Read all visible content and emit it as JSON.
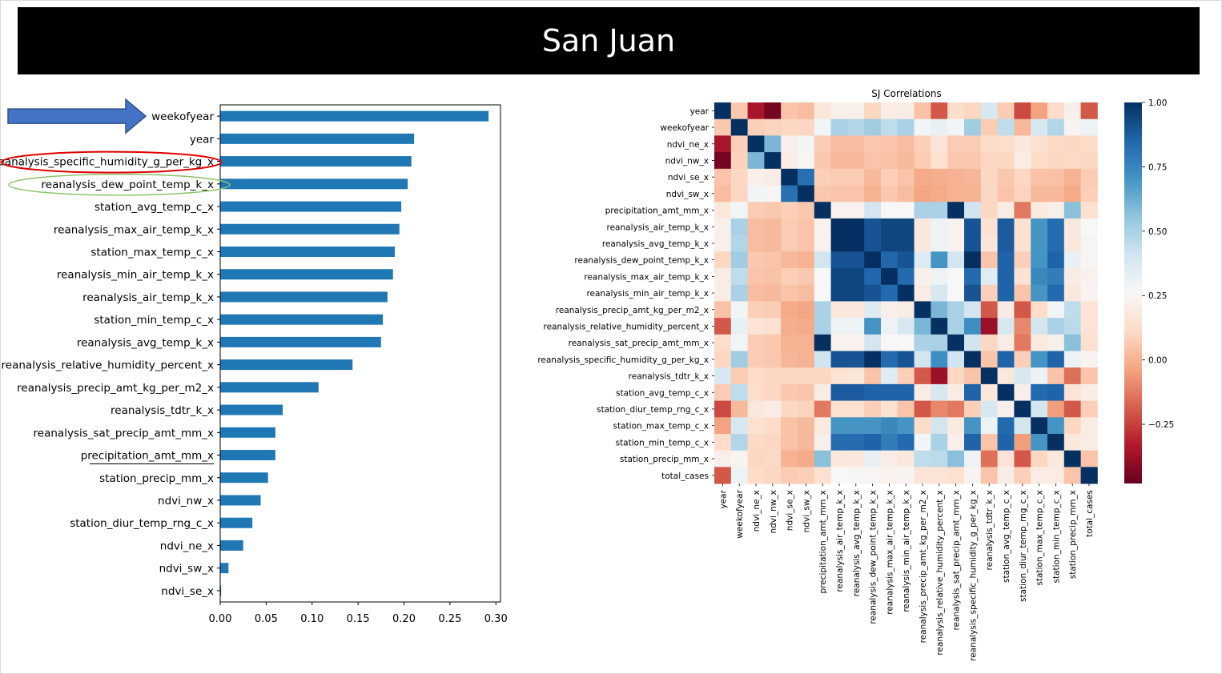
{
  "slide": {
    "title": "San Juan"
  },
  "colors": {
    "bar": "#1f77b4",
    "arrow_fill": "#4472c4",
    "arrow_stroke": "#2f528f",
    "highlight_red": "#e00000",
    "highlight_green": "#8dc46c",
    "cmap_neg": "#67001f",
    "cmap_mid": "#f7f7f7",
    "cmap_pos": "#053061"
  },
  "annotations": {
    "arrow_target": "weekofyear",
    "red_ellipse_target": "reanalysis_specific_humidity_g_per_kg_x",
    "green_ellipse_target": "reanalysis_dew_point_temp_k_x",
    "underline_target": "precipitation_amt_mm_x"
  },
  "chart_data": [
    {
      "type": "bar",
      "orientation": "horizontal",
      "title": "",
      "xlabel": "",
      "ylabel": "",
      "categories": [
        "weekofyear",
        "year",
        "reanalysis_specific_humidity_g_per_kg_x",
        "reanalysis_dew_point_temp_k_x",
        "station_avg_temp_c_x",
        "reanalysis_max_air_temp_k_x",
        "station_max_temp_c_x",
        "reanalysis_min_air_temp_k_x",
        "reanalysis_air_temp_k_x",
        "station_min_temp_c_x",
        "reanalysis_avg_temp_k_x",
        "reanalysis_relative_humidity_percent_x",
        "reanalysis_precip_amt_kg_per_m2_x",
        "reanalysis_tdtr_k_x",
        "reanalysis_sat_precip_amt_mm_x",
        "precipitation_amt_mm_x",
        "station_precip_mm_x",
        "ndvi_nw_x",
        "station_diur_temp_rng_c_x",
        "ndvi_ne_x",
        "ndvi_sw_x",
        "ndvi_se_x"
      ],
      "values": [
        0.292,
        0.211,
        0.208,
        0.204,
        0.197,
        0.195,
        0.19,
        0.188,
        0.182,
        0.177,
        0.175,
        0.144,
        0.107,
        0.068,
        0.06,
        0.06,
        0.052,
        0.044,
        0.035,
        0.025,
        0.009,
        0.001
      ],
      "xlim": [
        0.0,
        0.305
      ],
      "xticks": [
        0.0,
        0.05,
        0.1,
        0.15,
        0.2,
        0.25,
        0.3
      ],
      "xtick_labels": [
        "0.00",
        "0.05",
        "0.10",
        "0.15",
        "0.20",
        "0.25",
        "0.30"
      ],
      "grid": false
    },
    {
      "type": "heatmap",
      "title": "SJ Correlations",
      "labels": [
        "year",
        "weekofyear",
        "ndvi_ne_x",
        "ndvi_nw_x",
        "ndvi_se_x",
        "ndvi_sw_x",
        "precipitation_amt_mm_x",
        "reanalysis_air_temp_k_x",
        "reanalysis_avg_temp_k_x",
        "reanalysis_dew_point_temp_k_x",
        "reanalysis_max_air_temp_k_x",
        "reanalysis_min_air_temp_k_x",
        "reanalysis_precip_amt_kg_per_m2_x",
        "reanalysis_relative_humidity_percent_x",
        "reanalysis_sat_precip_amt_mm_x",
        "reanalysis_specific_humidity_g_per_kg_x",
        "reanalysis_tdtr_k_x",
        "station_avg_temp_c_x",
        "station_diur_temp_rng_c_x",
        "station_max_temp_c_x",
        "station_min_temp_c_x",
        "station_precip_mm_x",
        "total_cases"
      ],
      "matrix": [
        [
          1.0,
          0.06,
          -0.35,
          -0.45,
          0.05,
          0.03,
          0.18,
          0.22,
          0.22,
          0.1,
          0.2,
          0.2,
          0.04,
          -0.2,
          0.13,
          0.1,
          0.38,
          0.07,
          -0.23,
          -0.04,
          0.12,
          0.22,
          -0.2
        ],
        [
          0.06,
          1.0,
          0.08,
          0.09,
          0.1,
          0.1,
          0.28,
          0.5,
          0.48,
          0.52,
          0.45,
          0.5,
          0.28,
          0.32,
          0.28,
          0.52,
          0.07,
          0.45,
          0.02,
          0.38,
          0.48,
          0.24,
          0.3
        ],
        [
          -0.35,
          0.08,
          1.0,
          0.6,
          0.22,
          0.28,
          0.07,
          0.03,
          0.03,
          0.06,
          0.05,
          0.03,
          0.08,
          0.16,
          0.07,
          0.07,
          0.12,
          0.13,
          0.18,
          0.14,
          0.11,
          0.1,
          0.12
        ],
        [
          -0.45,
          0.09,
          0.6,
          1.0,
          0.2,
          0.25,
          0.06,
          0.02,
          0.02,
          0.05,
          0.04,
          0.02,
          0.07,
          0.14,
          0.06,
          0.06,
          0.1,
          0.1,
          0.2,
          0.12,
          0.1,
          0.11,
          0.1
        ],
        [
          0.05,
          0.1,
          0.22,
          0.2,
          1.0,
          0.82,
          0.08,
          0.07,
          0.07,
          0.02,
          0.08,
          0.05,
          -0.02,
          -0.01,
          0.0,
          0.01,
          0.1,
          0.06,
          0.1,
          0.04,
          0.04,
          0.0,
          0.07
        ],
        [
          0.03,
          0.1,
          0.28,
          0.25,
          0.82,
          1.0,
          0.06,
          0.05,
          0.05,
          0.0,
          0.06,
          0.03,
          -0.03,
          -0.02,
          0.0,
          0.0,
          0.1,
          0.05,
          0.09,
          0.02,
          0.02,
          -0.02,
          0.08
        ],
        [
          0.18,
          0.28,
          0.07,
          0.06,
          0.08,
          0.06,
          1.0,
          0.23,
          0.23,
          0.4,
          0.26,
          0.26,
          0.5,
          0.5,
          1.0,
          0.41,
          0.1,
          0.2,
          -0.13,
          0.19,
          0.22,
          0.57,
          0.14
        ],
        [
          0.22,
          0.5,
          0.03,
          0.02,
          0.07,
          0.05,
          0.23,
          1.0,
          1.0,
          0.9,
          0.94,
          0.94,
          0.18,
          0.3,
          0.23,
          0.9,
          0.15,
          0.88,
          0.14,
          0.7,
          0.83,
          0.18,
          0.26
        ],
        [
          0.22,
          0.48,
          0.03,
          0.02,
          0.07,
          0.05,
          0.23,
          1.0,
          1.0,
          0.9,
          0.94,
          0.94,
          0.18,
          0.3,
          0.23,
          0.9,
          0.17,
          0.88,
          0.14,
          0.7,
          0.83,
          0.18,
          0.25
        ],
        [
          0.1,
          0.52,
          0.06,
          0.05,
          0.02,
          0.0,
          0.4,
          0.9,
          0.9,
          1.0,
          0.85,
          0.9,
          0.36,
          0.7,
          0.4,
          1.0,
          0.05,
          0.86,
          0.08,
          0.7,
          0.86,
          0.32,
          0.25
        ],
        [
          0.2,
          0.45,
          0.05,
          0.04,
          0.08,
          0.06,
          0.26,
          0.94,
          0.94,
          0.85,
          1.0,
          0.84,
          0.22,
          0.3,
          0.26,
          0.84,
          0.35,
          0.86,
          0.15,
          0.74,
          0.78,
          0.2,
          0.23
        ],
        [
          0.2,
          0.5,
          0.03,
          0.02,
          0.05,
          0.03,
          0.26,
          0.94,
          0.94,
          0.9,
          0.84,
          1.0,
          0.2,
          0.38,
          0.26,
          0.9,
          0.08,
          0.86,
          0.05,
          0.7,
          0.84,
          0.18,
          0.24
        ],
        [
          0.04,
          0.28,
          0.08,
          0.07,
          -0.02,
          -0.03,
          0.5,
          0.18,
          0.18,
          0.36,
          0.22,
          0.2,
          1.0,
          0.6,
          0.5,
          0.4,
          -0.2,
          0.2,
          -0.2,
          0.12,
          0.28,
          0.45,
          0.16
        ],
        [
          -0.2,
          0.32,
          0.16,
          0.14,
          -0.01,
          -0.02,
          0.5,
          0.3,
          0.3,
          0.7,
          0.3,
          0.38,
          0.6,
          1.0,
          0.5,
          0.72,
          -0.38,
          0.38,
          -0.1,
          0.4,
          0.5,
          0.46,
          0.16
        ],
        [
          0.13,
          0.28,
          0.07,
          0.06,
          0.0,
          0.0,
          1.0,
          0.23,
          0.23,
          0.4,
          0.26,
          0.26,
          0.5,
          0.5,
          1.0,
          0.41,
          0.1,
          0.2,
          -0.13,
          0.19,
          0.22,
          0.57,
          0.14
        ],
        [
          0.1,
          0.52,
          0.07,
          0.06,
          0.01,
          0.0,
          0.41,
          0.9,
          0.9,
          1.0,
          0.84,
          0.9,
          0.4,
          0.72,
          0.41,
          1.0,
          0.05,
          0.86,
          0.08,
          0.7,
          0.86,
          0.3,
          0.24
        ],
        [
          0.38,
          0.07,
          0.12,
          0.1,
          0.1,
          0.1,
          0.1,
          0.15,
          0.17,
          0.05,
          0.35,
          0.08,
          -0.2,
          -0.38,
          0.1,
          0.05,
          1.0,
          0.18,
          0.38,
          0.3,
          0.05,
          -0.15,
          0.05
        ],
        [
          0.07,
          0.45,
          0.13,
          0.1,
          0.06,
          0.05,
          0.2,
          0.88,
          0.88,
          0.86,
          0.86,
          0.86,
          0.2,
          0.38,
          0.2,
          0.86,
          0.18,
          1.0,
          0.22,
          0.84,
          0.86,
          0.16,
          0.21
        ],
        [
          -0.23,
          0.02,
          0.18,
          0.2,
          0.1,
          0.09,
          -0.13,
          0.14,
          0.14,
          0.08,
          0.15,
          0.05,
          -0.2,
          -0.1,
          -0.13,
          0.08,
          0.38,
          0.22,
          1.0,
          0.4,
          -0.05,
          -0.2,
          0.08
        ],
        [
          -0.04,
          0.38,
          0.14,
          0.12,
          0.04,
          0.02,
          0.19,
          0.7,
          0.7,
          0.7,
          0.74,
          0.7,
          0.12,
          0.4,
          0.19,
          0.7,
          0.3,
          0.84,
          0.4,
          1.0,
          0.7,
          0.1,
          0.2
        ],
        [
          0.12,
          0.48,
          0.11,
          0.1,
          0.04,
          0.02,
          0.22,
          0.83,
          0.83,
          0.86,
          0.78,
          0.84,
          0.28,
          0.5,
          0.22,
          0.86,
          0.05,
          0.86,
          -0.05,
          0.7,
          1.0,
          0.18,
          0.2
        ],
        [
          0.22,
          0.24,
          0.1,
          0.11,
          0.0,
          -0.02,
          0.57,
          0.18,
          0.18,
          0.32,
          0.2,
          0.18,
          0.45,
          0.46,
          0.57,
          0.3,
          -0.15,
          0.16,
          -0.2,
          0.1,
          0.18,
          1.0,
          0.05
        ],
        [
          -0.2,
          0.3,
          0.12,
          0.1,
          0.07,
          0.08,
          0.14,
          0.26,
          0.25,
          0.25,
          0.23,
          0.24,
          0.16,
          0.16,
          0.14,
          0.24,
          0.05,
          0.21,
          0.08,
          0.2,
          0.2,
          0.05,
          1.0
        ]
      ],
      "colorbar": {
        "vmin": -0.48,
        "vmax": 1.0,
        "ticks": [
          -0.25,
          0.0,
          0.25,
          0.5,
          0.75,
          1.0
        ],
        "tick_labels": [
          "−0.25",
          "0.00",
          "0.25",
          "0.50",
          "0.75",
          "1.00"
        ],
        "colormap": "RdBu"
      }
    }
  ]
}
